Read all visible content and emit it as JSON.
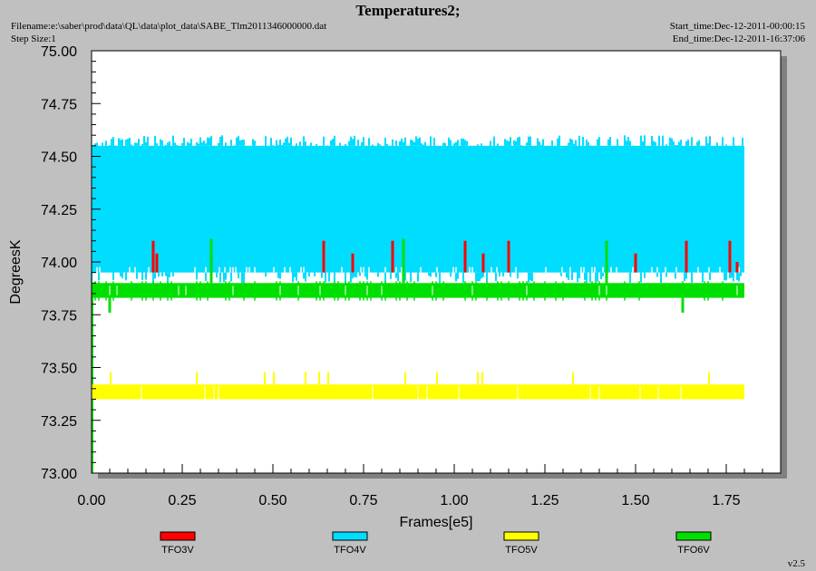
{
  "header": {
    "title": "Temperatures2;",
    "filename": "Filename:e:\\saber\\prod\\data\\QL\\data\\plot_data\\SABE_Tlm2011346000000.dat",
    "step_size": "Step Size:1",
    "start_time": "Start_time:Dec-12-2011-00:00:15",
    "end_time": "End_time:Dec-12-2011-16:37:06"
  },
  "version": "v2.5",
  "colors": {
    "background": "#c0c0c0",
    "plot_area": "#ffffff",
    "TFO3V": "#ff0000",
    "TFO4V": "#00ddff",
    "TFO5V": "#ffff00",
    "TFO6V": "#00e000"
  },
  "chart_data": {
    "type": "line",
    "xlabel": "Frames[e5]",
    "ylabel": "DegreesK",
    "xlim": [
      0.0,
      1.9
    ],
    "ylim": [
      73.0,
      75.0
    ],
    "x_ticks": [
      "0.00",
      "0.25",
      "0.50",
      "0.75",
      "1.00",
      "1.25",
      "1.50",
      "1.75"
    ],
    "x_tick_values": [
      0.0,
      0.25,
      0.5,
      0.75,
      1.0,
      1.25,
      1.5,
      1.75
    ],
    "y_ticks": [
      "73.00",
      "73.25",
      "73.50",
      "73.75",
      "74.00",
      "74.25",
      "74.50",
      "74.75",
      "75.00"
    ],
    "y_tick_values": [
      73.0,
      73.25,
      73.5,
      73.75,
      74.0,
      74.25,
      74.5,
      74.75,
      75.0
    ],
    "grid": false,
    "legend_position": "bottom",
    "series": [
      {
        "name": "TFO3V",
        "color": "#ff0000",
        "x_range": [
          0.0,
          1.8
        ],
        "typical_range": [
          73.95,
          74.04
        ],
        "spikes": [
          {
            "x": 0.17,
            "y": 74.1
          },
          {
            "x": 0.18,
            "y": 74.04
          },
          {
            "x": 0.64,
            "y": 74.1
          },
          {
            "x": 0.72,
            "y": 74.04
          },
          {
            "x": 0.83,
            "y": 74.1
          },
          {
            "x": 1.03,
            "y": 74.1
          },
          {
            "x": 1.08,
            "y": 74.04
          },
          {
            "x": 1.15,
            "y": 74.1
          },
          {
            "x": 1.5,
            "y": 74.04
          },
          {
            "x": 1.64,
            "y": 74.1
          },
          {
            "x": 1.76,
            "y": 74.1
          },
          {
            "x": 1.78,
            "y": 74.0
          }
        ]
      },
      {
        "name": "TFO4V",
        "color": "#00ddff",
        "x_range": [
          0.0,
          1.8
        ],
        "typical_range": [
          73.95,
          74.55
        ],
        "max": 74.6,
        "min": 73.9
      },
      {
        "name": "TFO5V",
        "color": "#ffff00",
        "x_range": [
          0.0,
          1.8
        ],
        "typical_range": [
          73.35,
          73.42
        ],
        "max": 73.48,
        "min": 73.35
      },
      {
        "name": "TFO6V",
        "color": "#00e000",
        "x_range": [
          0.0,
          1.8
        ],
        "typical_range": [
          73.83,
          73.9
        ],
        "spikes": [
          {
            "x": 0.05,
            "y": 73.76
          },
          {
            "x": 0.33,
            "y": 74.11
          },
          {
            "x": 0.86,
            "y": 74.11
          },
          {
            "x": 1.42,
            "y": 74.1
          },
          {
            "x": 1.63,
            "y": 73.76
          }
        ],
        "start_value": 73.0
      }
    ]
  }
}
